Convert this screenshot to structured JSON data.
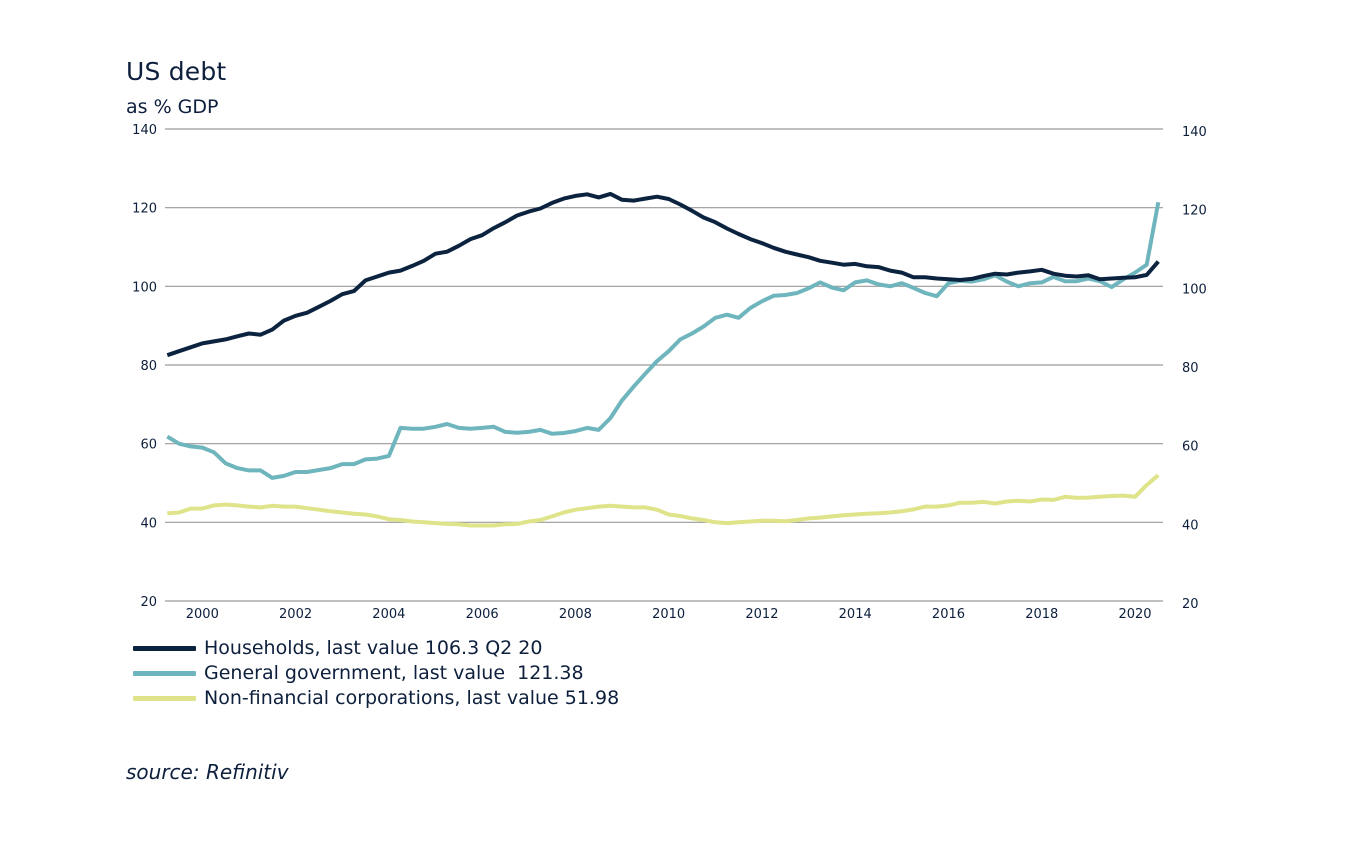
{
  "header": {
    "title": "US debt",
    "subtitle": "as % GDP"
  },
  "legend": {
    "items": [
      {
        "label": "Households, last value 106.3 Q2 20",
        "color": "#0c2340"
      },
      {
        "label": "General government, last value  121.38",
        "color": "#6fb5bd"
      },
      {
        "label": "Non-financial corporations, last value 51.98",
        "color": "#dfe38a"
      }
    ]
  },
  "source": "source: Refinitiv",
  "chart_data": {
    "type": "line",
    "title": "US debt",
    "subtitle": "as % GDP",
    "ylim": [
      20,
      140
    ],
    "y_ticks": [
      20,
      40,
      60,
      80,
      100,
      120,
      140
    ],
    "y_tick_labels_left": [
      "20",
      "40",
      "60",
      "80",
      "100",
      "120",
      "140"
    ],
    "y_tick_labels_right": [
      "20",
      "40",
      "60",
      "80",
      "100",
      "120",
      "140"
    ],
    "xlim": [
      1999.2,
      2020.6
    ],
    "x_ticks": [
      2000,
      2002,
      2004,
      2006,
      2008,
      2010,
      2012,
      2014,
      2016,
      2018,
      2020
    ],
    "x_tick_labels": [
      "2000",
      "2002",
      "2004",
      "2006",
      "2008",
      "2010",
      "2012",
      "2014",
      "2016",
      "2018",
      "2020"
    ],
    "grid": "horizontal",
    "legend_position": "bottom-left",
    "series": [
      {
        "name": "Households, last value 106.3 Q2 20",
        "color": "#0c2340",
        "points": [
          [
            1999.25,
            82.5
          ],
          [
            1999.5,
            83.5
          ],
          [
            1999.75,
            84.5
          ],
          [
            2000.0,
            85.5
          ],
          [
            2000.25,
            86.0
          ],
          [
            2000.5,
            86.5
          ],
          [
            2000.75,
            87.3
          ],
          [
            2001.0,
            88.0
          ],
          [
            2001.25,
            87.7
          ],
          [
            2001.5,
            89.0
          ],
          [
            2001.75,
            91.3
          ],
          [
            2002.0,
            92.5
          ],
          [
            2002.25,
            93.3
          ],
          [
            2002.5,
            94.8
          ],
          [
            2002.75,
            96.3
          ],
          [
            2003.0,
            98.0
          ],
          [
            2003.25,
            98.8
          ],
          [
            2003.5,
            101.5
          ],
          [
            2003.75,
            102.5
          ],
          [
            2004.0,
            103.5
          ],
          [
            2004.25,
            104.0
          ],
          [
            2004.5,
            105.2
          ],
          [
            2004.75,
            106.5
          ],
          [
            2005.0,
            108.3
          ],
          [
            2005.25,
            108.8
          ],
          [
            2005.5,
            110.3
          ],
          [
            2005.75,
            112.0
          ],
          [
            2006.0,
            113.0
          ],
          [
            2006.25,
            114.8
          ],
          [
            2006.5,
            116.3
          ],
          [
            2006.75,
            118.0
          ],
          [
            2007.0,
            119.0
          ],
          [
            2007.25,
            119.8
          ],
          [
            2007.5,
            121.2
          ],
          [
            2007.75,
            122.3
          ],
          [
            2008.0,
            123.0
          ],
          [
            2008.25,
            123.4
          ],
          [
            2008.5,
            122.6
          ],
          [
            2008.75,
            123.5
          ],
          [
            2009.0,
            122.0
          ],
          [
            2009.25,
            121.8
          ],
          [
            2009.5,
            122.3
          ],
          [
            2009.75,
            122.8
          ],
          [
            2010.0,
            122.2
          ],
          [
            2010.25,
            120.8
          ],
          [
            2010.5,
            119.2
          ],
          [
            2010.75,
            117.5
          ],
          [
            2011.0,
            116.3
          ],
          [
            2011.25,
            114.7
          ],
          [
            2011.5,
            113.3
          ],
          [
            2011.75,
            112.0
          ],
          [
            2012.0,
            111.0
          ],
          [
            2012.25,
            109.8
          ],
          [
            2012.5,
            108.8
          ],
          [
            2012.75,
            108.1
          ],
          [
            2013.0,
            107.4
          ],
          [
            2013.25,
            106.5
          ],
          [
            2013.5,
            106.0
          ],
          [
            2013.75,
            105.5
          ],
          [
            2014.0,
            105.7
          ],
          [
            2014.25,
            105.1
          ],
          [
            2014.5,
            104.9
          ],
          [
            2014.75,
            104.0
          ],
          [
            2015.0,
            103.5
          ],
          [
            2015.25,
            102.3
          ],
          [
            2015.5,
            102.3
          ],
          [
            2015.75,
            102.0
          ],
          [
            2016.0,
            101.8
          ],
          [
            2016.25,
            101.6
          ],
          [
            2016.5,
            101.9
          ],
          [
            2016.75,
            102.6
          ],
          [
            2017.0,
            103.2
          ],
          [
            2017.25,
            103.0
          ],
          [
            2017.5,
            103.5
          ],
          [
            2017.75,
            103.8
          ],
          [
            2018.0,
            104.2
          ],
          [
            2018.25,
            103.2
          ],
          [
            2018.5,
            102.7
          ],
          [
            2018.75,
            102.5
          ],
          [
            2019.0,
            102.8
          ],
          [
            2019.25,
            101.8
          ],
          [
            2019.5,
            102.0
          ],
          [
            2019.75,
            102.2
          ],
          [
            2020.0,
            102.3
          ],
          [
            2020.25,
            102.9
          ],
          [
            2020.5,
            106.3
          ]
        ]
      },
      {
        "name": "General government, last value  121.38",
        "color": "#6fb5bd",
        "points": [
          [
            1999.25,
            61.8
          ],
          [
            1999.5,
            60.0
          ],
          [
            1999.75,
            59.3
          ],
          [
            2000.0,
            59.0
          ],
          [
            2000.25,
            57.8
          ],
          [
            2000.5,
            55.0
          ],
          [
            2000.75,
            53.8
          ],
          [
            2001.0,
            53.2
          ],
          [
            2001.25,
            53.2
          ],
          [
            2001.5,
            51.3
          ],
          [
            2001.75,
            51.8
          ],
          [
            2002.0,
            52.8
          ],
          [
            2002.25,
            52.8
          ],
          [
            2002.5,
            53.3
          ],
          [
            2002.75,
            53.8
          ],
          [
            2003.0,
            54.8
          ],
          [
            2003.25,
            54.8
          ],
          [
            2003.5,
            56.0
          ],
          [
            2003.75,
            56.2
          ],
          [
            2004.0,
            56.9
          ],
          [
            2004.25,
            64.0
          ],
          [
            2004.5,
            63.8
          ],
          [
            2004.75,
            63.8
          ],
          [
            2005.0,
            64.3
          ],
          [
            2005.25,
            65.0
          ],
          [
            2005.5,
            64.0
          ],
          [
            2005.75,
            63.8
          ],
          [
            2006.0,
            64.0
          ],
          [
            2006.25,
            64.3
          ],
          [
            2006.5,
            63.0
          ],
          [
            2006.75,
            62.8
          ],
          [
            2007.0,
            63.0
          ],
          [
            2007.25,
            63.5
          ],
          [
            2007.5,
            62.5
          ],
          [
            2007.75,
            62.7
          ],
          [
            2008.0,
            63.2
          ],
          [
            2008.25,
            64.0
          ],
          [
            2008.5,
            63.5
          ],
          [
            2008.75,
            66.5
          ],
          [
            2009.0,
            71.0
          ],
          [
            2009.25,
            74.5
          ],
          [
            2009.5,
            77.8
          ],
          [
            2009.75,
            81.0
          ],
          [
            2010.0,
            83.5
          ],
          [
            2010.25,
            86.5
          ],
          [
            2010.5,
            88.0
          ],
          [
            2010.75,
            89.8
          ],
          [
            2011.0,
            92.0
          ],
          [
            2011.25,
            92.8
          ],
          [
            2011.5,
            92.0
          ],
          [
            2011.75,
            94.5
          ],
          [
            2012.0,
            96.2
          ],
          [
            2012.25,
            97.6
          ],
          [
            2012.5,
            97.8
          ],
          [
            2012.75,
            98.3
          ],
          [
            2013.0,
            99.5
          ],
          [
            2013.25,
            101.0
          ],
          [
            2013.5,
            99.7
          ],
          [
            2013.75,
            99.0
          ],
          [
            2014.0,
            101.0
          ],
          [
            2014.25,
            101.5
          ],
          [
            2014.5,
            100.5
          ],
          [
            2014.75,
            100.0
          ],
          [
            2015.0,
            100.8
          ],
          [
            2015.25,
            99.6
          ],
          [
            2015.5,
            98.3
          ],
          [
            2015.75,
            97.5
          ],
          [
            2016.0,
            100.8
          ],
          [
            2016.25,
            101.4
          ],
          [
            2016.5,
            101.2
          ],
          [
            2016.75,
            101.8
          ],
          [
            2017.0,
            102.8
          ],
          [
            2017.25,
            101.2
          ],
          [
            2017.5,
            100.0
          ],
          [
            2017.75,
            100.8
          ],
          [
            2018.0,
            101.0
          ],
          [
            2018.25,
            102.4
          ],
          [
            2018.5,
            101.3
          ],
          [
            2018.75,
            101.3
          ],
          [
            2019.0,
            102.0
          ],
          [
            2019.25,
            101.3
          ],
          [
            2019.5,
            99.8
          ],
          [
            2019.75,
            101.8
          ],
          [
            2020.0,
            103.5
          ],
          [
            2020.25,
            105.5
          ],
          [
            2020.5,
            121.38
          ]
        ]
      },
      {
        "name": "Non-financial corporations, last value 51.98",
        "color": "#dfe38a",
        "points": [
          [
            1999.25,
            42.3
          ],
          [
            1999.5,
            42.5
          ],
          [
            1999.75,
            43.5
          ],
          [
            2000.0,
            43.5
          ],
          [
            2000.25,
            44.3
          ],
          [
            2000.5,
            44.5
          ],
          [
            2000.75,
            44.3
          ],
          [
            2001.0,
            44.0
          ],
          [
            2001.25,
            43.8
          ],
          [
            2001.5,
            44.2
          ],
          [
            2001.75,
            44.0
          ],
          [
            2002.0,
            44.0
          ],
          [
            2002.25,
            43.6
          ],
          [
            2002.5,
            43.2
          ],
          [
            2002.75,
            42.8
          ],
          [
            2003.0,
            42.5
          ],
          [
            2003.25,
            42.2
          ],
          [
            2003.5,
            42.0
          ],
          [
            2003.75,
            41.5
          ],
          [
            2004.0,
            40.8
          ],
          [
            2004.25,
            40.6
          ],
          [
            2004.5,
            40.2
          ],
          [
            2004.75,
            40.0
          ],
          [
            2005.0,
            39.8
          ],
          [
            2005.25,
            39.6
          ],
          [
            2005.5,
            39.5
          ],
          [
            2005.75,
            39.2
          ],
          [
            2006.0,
            39.2
          ],
          [
            2006.25,
            39.2
          ],
          [
            2006.5,
            39.5
          ],
          [
            2006.75,
            39.6
          ],
          [
            2007.0,
            40.2
          ],
          [
            2007.25,
            40.6
          ],
          [
            2007.5,
            41.5
          ],
          [
            2007.75,
            42.5
          ],
          [
            2008.0,
            43.2
          ],
          [
            2008.25,
            43.6
          ],
          [
            2008.5,
            44.0
          ],
          [
            2008.75,
            44.2
          ],
          [
            2009.0,
            44.0
          ],
          [
            2009.25,
            43.8
          ],
          [
            2009.5,
            43.8
          ],
          [
            2009.75,
            43.2
          ],
          [
            2010.0,
            42.0
          ],
          [
            2010.25,
            41.6
          ],
          [
            2010.5,
            41.0
          ],
          [
            2010.75,
            40.6
          ],
          [
            2011.0,
            40.0
          ],
          [
            2011.25,
            39.8
          ],
          [
            2011.5,
            40.0
          ],
          [
            2011.75,
            40.2
          ],
          [
            2012.0,
            40.4
          ],
          [
            2012.25,
            40.4
          ],
          [
            2012.5,
            40.3
          ],
          [
            2012.75,
            40.6
          ],
          [
            2013.0,
            41.0
          ],
          [
            2013.25,
            41.2
          ],
          [
            2013.5,
            41.5
          ],
          [
            2013.75,
            41.8
          ],
          [
            2014.0,
            42.0
          ],
          [
            2014.25,
            42.2
          ],
          [
            2014.5,
            42.3
          ],
          [
            2014.75,
            42.5
          ],
          [
            2015.0,
            42.8
          ],
          [
            2015.25,
            43.3
          ],
          [
            2015.5,
            44.0
          ],
          [
            2015.75,
            44.0
          ],
          [
            2016.0,
            44.3
          ],
          [
            2016.25,
            45.0
          ],
          [
            2016.5,
            45.0
          ],
          [
            2016.75,
            45.2
          ],
          [
            2017.0,
            44.8
          ],
          [
            2017.25,
            45.3
          ],
          [
            2017.5,
            45.5
          ],
          [
            2017.75,
            45.3
          ],
          [
            2018.0,
            45.8
          ],
          [
            2018.25,
            45.7
          ],
          [
            2018.5,
            46.5
          ],
          [
            2018.75,
            46.2
          ],
          [
            2019.0,
            46.3
          ],
          [
            2019.25,
            46.5
          ],
          [
            2019.5,
            46.7
          ],
          [
            2019.75,
            46.8
          ],
          [
            2020.0,
            46.5
          ],
          [
            2020.25,
            49.5
          ],
          [
            2020.5,
            51.98
          ]
        ]
      }
    ]
  }
}
